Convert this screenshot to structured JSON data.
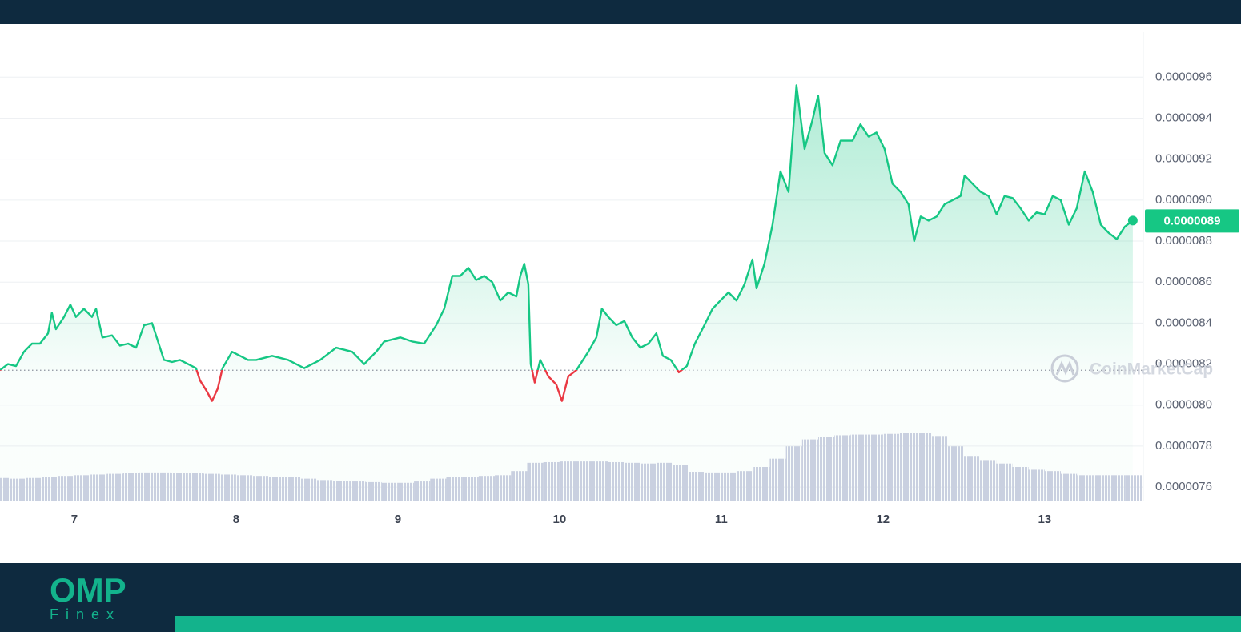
{
  "brand": {
    "name": "OMP",
    "tagline": "Finex"
  },
  "chart_data": {
    "type": "line",
    "x": [
      6.54,
      6.589,
      6.639,
      6.688,
      6.738,
      6.787,
      6.837,
      6.861,
      6.886,
      6.936,
      6.975,
      7.01,
      7.059,
      7.109,
      7.134,
      7.173,
      7.233,
      7.282,
      7.332,
      7.381,
      7.431,
      7.48,
      7.505,
      7.554,
      7.604,
      7.653,
      7.703,
      7.752,
      7.777,
      7.817,
      7.851,
      7.886,
      7.916,
      7.975,
      8.025,
      8.074,
      8.124,
      8.223,
      8.322,
      8.421,
      8.52,
      8.619,
      8.718,
      8.792,
      8.866,
      8.916,
      9.015,
      9.089,
      9.163,
      9.238,
      9.287,
      9.337,
      9.386,
      9.436,
      9.485,
      9.535,
      9.584,
      9.634,
      9.683,
      9.733,
      9.757,
      9.782,
      9.807,
      9.822,
      9.847,
      9.881,
      9.931,
      9.98,
      10.015,
      10.054,
      10.104,
      10.178,
      10.228,
      10.262,
      10.302,
      10.351,
      10.401,
      10.45,
      10.5,
      10.55,
      10.599,
      10.639,
      10.688,
      10.738,
      10.787,
      10.837,
      10.896,
      10.946,
      10.995,
      11.045,
      11.094,
      11.144,
      11.193,
      11.218,
      11.267,
      11.317,
      11.366,
      11.416,
      11.465,
      11.515,
      11.564,
      11.599,
      11.639,
      11.688,
      11.738,
      11.812,
      11.861,
      11.911,
      11.96,
      12.01,
      12.059,
      12.109,
      12.158,
      12.193,
      12.233,
      12.282,
      12.332,
      12.381,
      12.431,
      12.48,
      12.505,
      12.554,
      12.604,
      12.653,
      12.703,
      12.752,
      12.802,
      12.851,
      12.901,
      12.95,
      13.0,
      13.05,
      13.099,
      13.149,
      13.198,
      13.248,
      13.297,
      13.347,
      13.396,
      13.446,
      13.495,
      13.545
    ],
    "series": [
      {
        "color": "#16c784",
        "values": [
          8.17e-06,
          8.2e-06,
          8.19e-06,
          8.26e-06,
          8.3e-06,
          8.3e-06,
          8.35e-06,
          8.45e-06,
          8.37e-06,
          8.43e-06,
          8.49e-06,
          8.43e-06,
          8.47e-06,
          8.43e-06,
          8.47e-06,
          8.33e-06,
          8.34e-06,
          8.29e-06,
          8.3e-06,
          8.28e-06,
          8.39e-06,
          8.4e-06,
          8.34e-06,
          8.22e-06,
          8.21e-06,
          8.22e-06,
          8.2e-06,
          8.18e-06,
          8.12e-06,
          8.07e-06,
          8.02e-06,
          8.08e-06,
          8.18e-06,
          8.26e-06,
          8.24e-06,
          8.22e-06,
          8.22e-06,
          8.24e-06,
          8.22e-06,
          8.18e-06,
          8.22e-06,
          8.28e-06,
          8.26e-06,
          8.2e-06,
          8.26e-06,
          8.31e-06,
          8.33e-06,
          8.31e-06,
          8.3e-06,
          8.39e-06,
          8.47e-06,
          8.63e-06,
          8.63e-06,
          8.67e-06,
          8.61e-06,
          8.63e-06,
          8.6e-06,
          8.51e-06,
          8.55e-06,
          8.53e-06,
          8.63e-06,
          8.69e-06,
          8.59e-06,
          8.2e-06,
          8.11e-06,
          8.22e-06,
          8.14e-06,
          8.1e-06,
          8.02e-06,
          8.14e-06,
          8.17e-06,
          8.26e-06,
          8.33e-06,
          8.47e-06,
          8.43e-06,
          8.39e-06,
          8.41e-06,
          8.33e-06,
          8.28e-06,
          8.3e-06,
          8.35e-06,
          8.24e-06,
          8.22e-06,
          8.16e-06,
          8.19e-06,
          8.3e-06,
          8.39e-06,
          8.47e-06,
          8.51e-06,
          8.55e-06,
          8.51e-06,
          8.59e-06,
          8.71e-06,
          8.57e-06,
          8.69e-06,
          8.88e-06,
          9.14e-06,
          9.04e-06,
          9.56e-06,
          9.25e-06,
          9.39e-06,
          9.51e-06,
          9.23e-06,
          9.17e-06,
          9.29e-06,
          9.29e-06,
          9.37e-06,
          9.31e-06,
          9.33e-06,
          9.25e-06,
          9.08e-06,
          9.04e-06,
          8.98e-06,
          8.8e-06,
          8.92e-06,
          8.9e-06,
          8.92e-06,
          8.98e-06,
          9e-06,
          9.02e-06,
          9.12e-06,
          9.08e-06,
          9.04e-06,
          9.02e-06,
          8.93e-06,
          9.02e-06,
          9.01e-06,
          8.96e-06,
          8.9e-06,
          8.94e-06,
          8.93e-06,
          9.02e-06,
          9e-06,
          8.88e-06,
          8.96e-06,
          9.14e-06,
          9.04e-06,
          8.88e-06,
          8.84e-06,
          8.81e-06,
          8.87e-06,
          8.9e-06
        ]
      }
    ],
    "below_color": "#ea3943",
    "baseline": 8.17e-06,
    "current_price": 8.9e-06,
    "watermark": "CoinMarketCap",
    "xlim": [
      6.54,
      13.61
    ],
    "xticks": [
      7,
      8,
      9,
      10,
      11,
      12,
      13
    ],
    "ylim": [
      7.53e-06,
      9.82e-06
    ],
    "yticks": [
      7.6e-06,
      7.8e-06,
      {
        "value": 8e-06,
        "label": "0.0000080"
      },
      8.2e-06,
      8.4e-06,
      8.6e-06,
      8.8e-06,
      {
        "value": 9e-06,
        "label": "0.0000090"
      },
      9.2e-06,
      9.4e-06,
      9.6e-06
    ],
    "grid": true,
    "volume": {
      "color": "#c9d0e0",
      "x": [
        6.55,
        6.65,
        6.75,
        6.85,
        6.95,
        7.05,
        7.15,
        7.25,
        7.35,
        7.45,
        7.55,
        7.65,
        7.75,
        7.85,
        7.95,
        8.05,
        8.15,
        8.25,
        8.35,
        8.45,
        8.55,
        8.65,
        8.75,
        8.85,
        8.95,
        9.05,
        9.15,
        9.25,
        9.35,
        9.45,
        9.55,
        9.65,
        9.75,
        9.85,
        9.95,
        10.05,
        10.15,
        10.25,
        10.35,
        10.45,
        10.55,
        10.65,
        10.75,
        10.85,
        10.95,
        11.05,
        11.15,
        11.25,
        11.35,
        11.45,
        11.55,
        11.65,
        11.75,
        11.85,
        11.95,
        12.05,
        12.15,
        12.25,
        12.35,
        12.45,
        12.55,
        12.65,
        12.75,
        12.85,
        12.95,
        13.05,
        13.15,
        13.25,
        13.35,
        13.45,
        13.55
      ],
      "values": [
        34,
        33,
        34,
        35,
        37,
        38,
        39,
        40,
        41,
        42,
        42,
        41,
        41,
        40,
        39,
        38,
        37,
        36,
        35,
        33,
        31,
        30,
        29,
        28,
        27,
        27,
        29,
        33,
        35,
        36,
        37,
        38,
        44,
        56,
        57,
        58,
        58,
        58,
        57,
        56,
        55,
        56,
        53,
        43,
        42,
        42,
        44,
        50,
        62,
        80,
        90,
        94,
        96,
        97,
        97,
        98,
        99,
        100,
        95,
        80,
        66,
        60,
        55,
        50,
        46,
        44,
        40,
        38,
        38,
        38,
        38
      ]
    }
  }
}
